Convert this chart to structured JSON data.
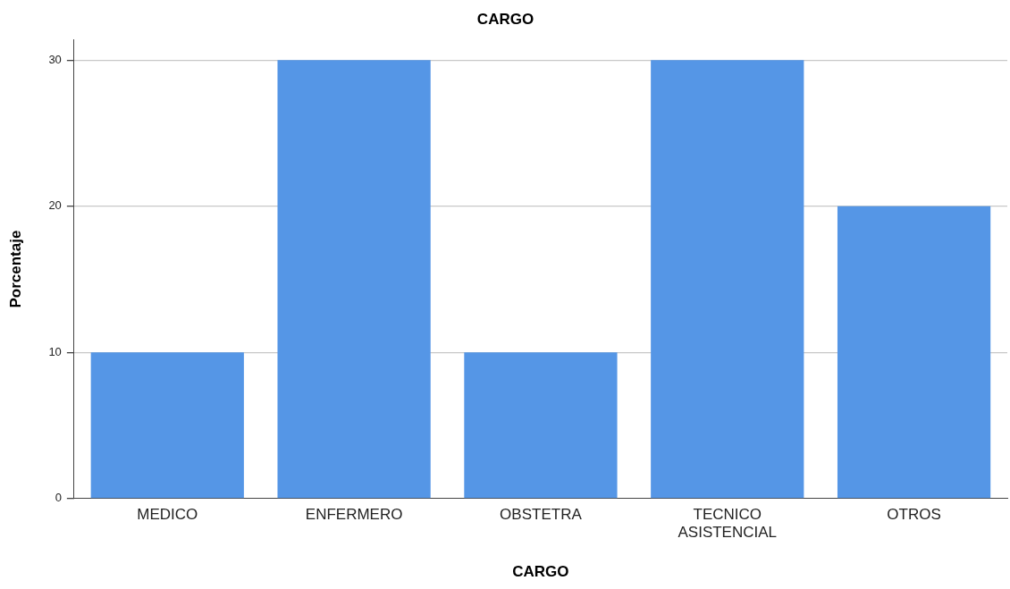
{
  "chart_data": {
    "type": "bar",
    "title": "CARGO",
    "xlabel": "CARGO",
    "ylabel": "Porcentaje",
    "categories": [
      "MEDICO",
      "ENFERMERO",
      "OBSTETRA",
      "TECNICO ASISTENCIAL",
      "OTROS"
    ],
    "values": [
      10,
      30,
      10,
      30,
      20
    ],
    "color": "#5596e6",
    "ylim": [
      0,
      31.4
    ],
    "yticks": [
      0,
      10,
      20,
      30
    ],
    "grid": "y",
    "legend": false
  }
}
